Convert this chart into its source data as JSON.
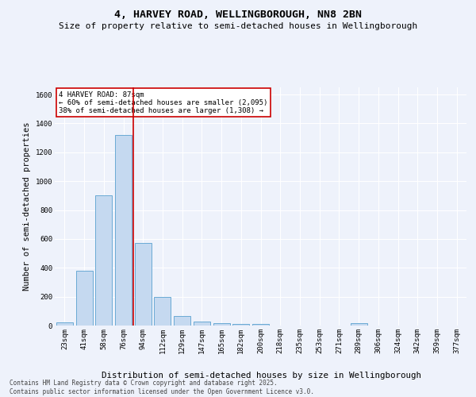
{
  "title": "4, HARVEY ROAD, WELLINGBOROUGH, NN8 2BN",
  "subtitle": "Size of property relative to semi-detached houses in Wellingborough",
  "xlabel": "Distribution of semi-detached houses by size in Wellingborough",
  "ylabel": "Number of semi-detached properties",
  "categories": [
    "23sqm",
    "41sqm",
    "58sqm",
    "76sqm",
    "94sqm",
    "112sqm",
    "129sqm",
    "147sqm",
    "165sqm",
    "182sqm",
    "200sqm",
    "218sqm",
    "235sqm",
    "253sqm",
    "271sqm",
    "289sqm",
    "306sqm",
    "324sqm",
    "342sqm",
    "359sqm",
    "377sqm"
  ],
  "values": [
    20,
    380,
    900,
    1320,
    570,
    200,
    65,
    30,
    15,
    10,
    10,
    0,
    0,
    0,
    0,
    15,
    0,
    0,
    0,
    0,
    0
  ],
  "bar_color": "#c5d9f0",
  "bar_edge_color": "#6aaad4",
  "red_line_index": 3.5,
  "annotation_text": "4 HARVEY ROAD: 87sqm\n← 60% of semi-detached houses are smaller (2,095)\n38% of semi-detached houses are larger (1,308) →",
  "annotation_box_color": "#ffffff",
  "annotation_box_edge": "#cc0000",
  "red_line_color": "#cc0000",
  "background_color": "#eef2fb",
  "grid_color": "#ffffff",
  "ylim": [
    0,
    1650
  ],
  "yticks": [
    0,
    200,
    400,
    600,
    800,
    1000,
    1200,
    1400,
    1600
  ],
  "title_fontsize": 9.5,
  "subtitle_fontsize": 8,
  "axis_label_fontsize": 7.5,
  "tick_fontsize": 6.5,
  "annotation_fontsize": 6.5,
  "footer_text": "Contains HM Land Registry data © Crown copyright and database right 2025.\nContains public sector information licensed under the Open Government Licence v3.0.",
  "footer_fontsize": 5.5
}
